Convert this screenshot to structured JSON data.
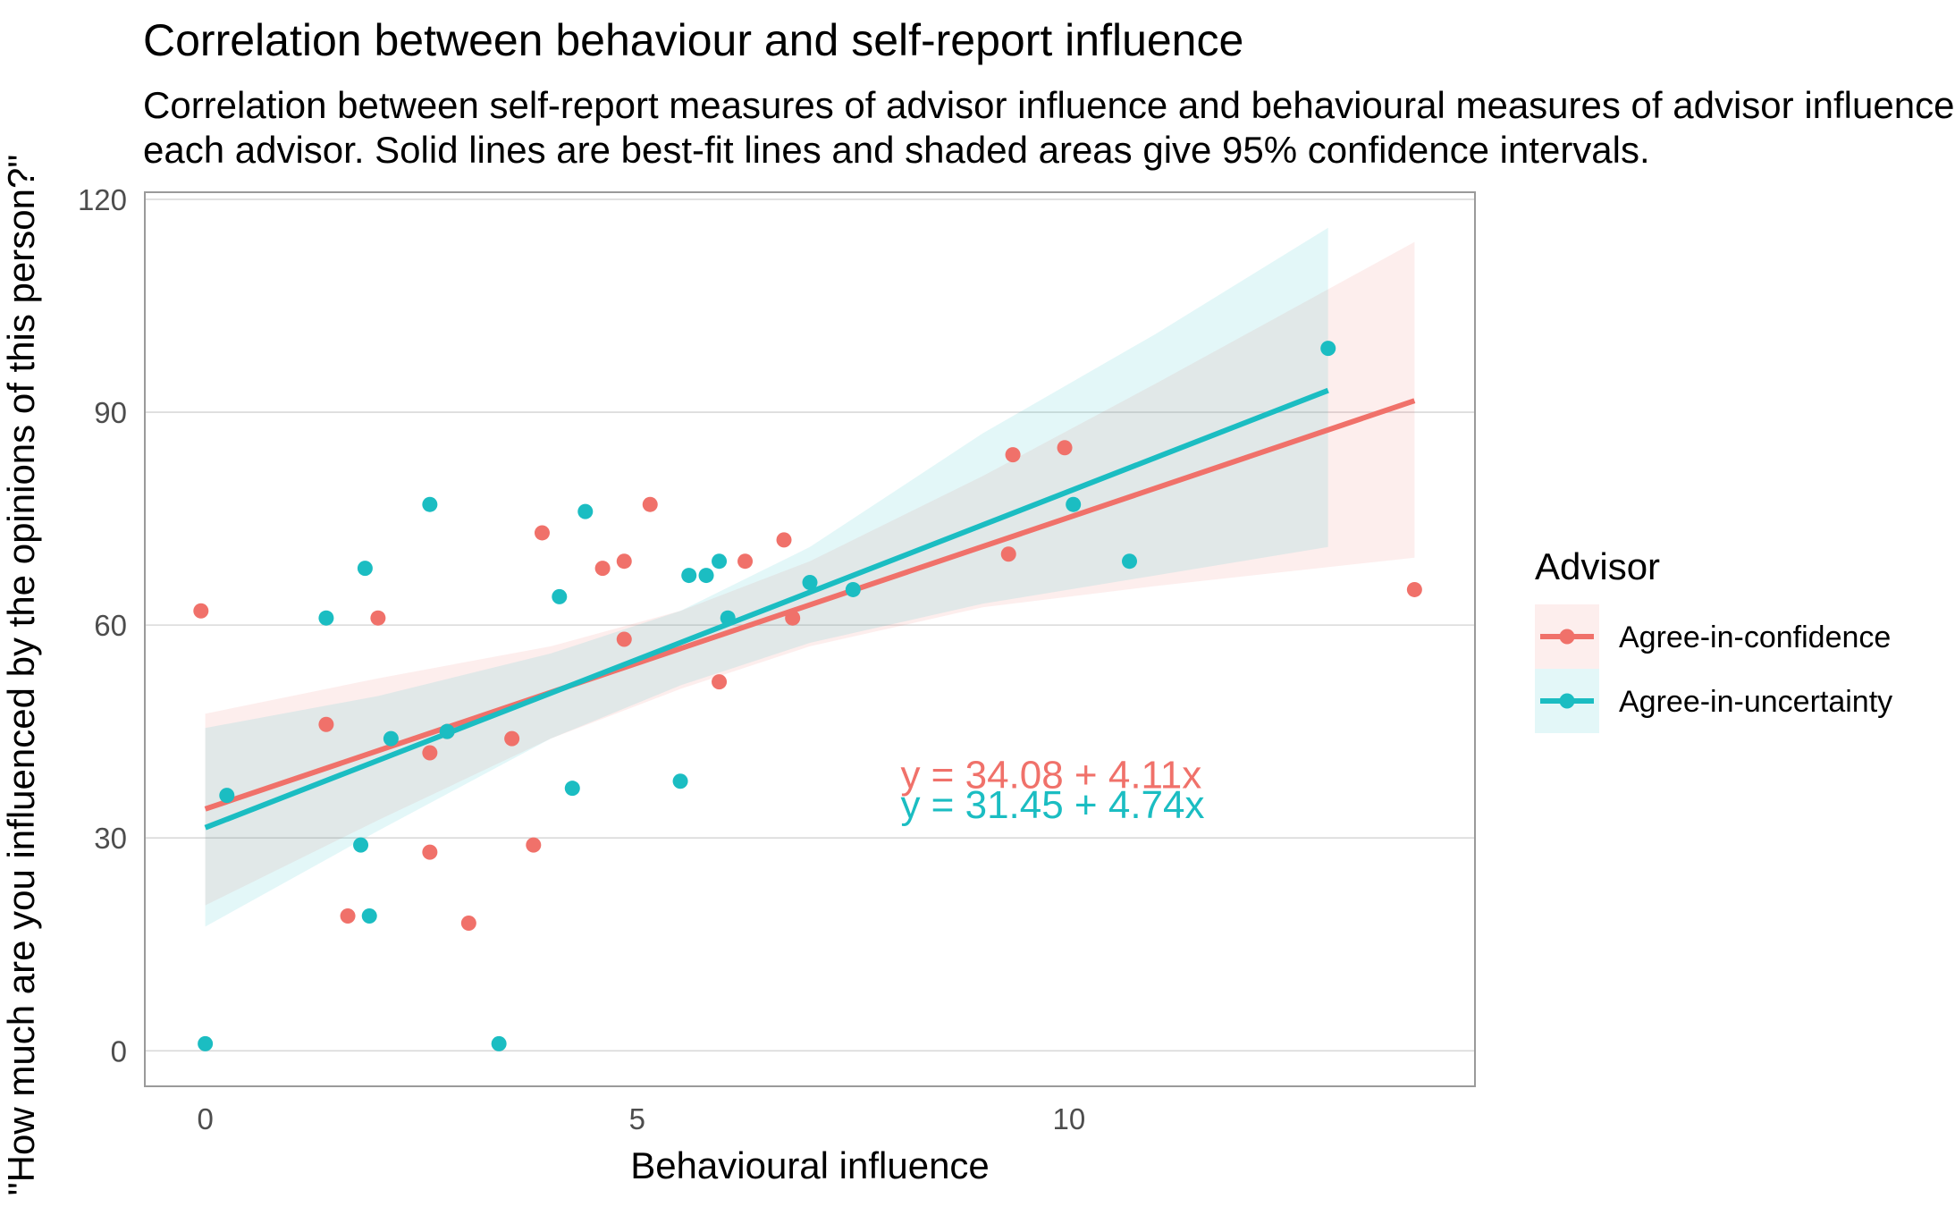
{
  "colors": {
    "agree_in_confidence": "#F0716A",
    "agree_in_uncertainty": "#1BBDC2",
    "grid": "#D9D9D9",
    "panel_border": "#9A9A9A"
  },
  "chart_data": {
    "type": "scatter",
    "title": "Correlation between behaviour and self-report influence",
    "subtitle_lines": [
      "Correlation between self-report measures of advisor influence and behavioural measures of advisor influence for",
      "each advisor.  Solid lines are best-fit lines and shaded areas give 95% confidence intervals."
    ],
    "xlabel": "Behavioural influence",
    "ylabel": "\"How much are you influenced by the opinions of this person?\"",
    "xlim": [
      -0.7,
      14.7
    ],
    "ylim": [
      -5,
      121
    ],
    "x_ticks": [
      0,
      5,
      10
    ],
    "y_ticks": [
      0,
      30,
      60,
      90,
      120
    ],
    "grid": true,
    "legend": {
      "title": "Advisor",
      "position": "right",
      "entries": [
        "Agree-in-confidence",
        "Agree-in-uncertainty"
      ]
    },
    "series": [
      {
        "name": "Agree-in-confidence",
        "color": "#F0716A",
        "points": [
          {
            "x": -0.05,
            "y": 62
          },
          {
            "x": 1.4,
            "y": 46
          },
          {
            "x": 1.65,
            "y": 19
          },
          {
            "x": 2.0,
            "y": 61
          },
          {
            "x": 2.6,
            "y": 42
          },
          {
            "x": 2.6,
            "y": 28
          },
          {
            "x": 2.8,
            "y": 45
          },
          {
            "x": 3.05,
            "y": 18
          },
          {
            "x": 3.55,
            "y": 44
          },
          {
            "x": 3.8,
            "y": 29
          },
          {
            "x": 3.9,
            "y": 73
          },
          {
            "x": 4.6,
            "y": 68
          },
          {
            "x": 4.85,
            "y": 69
          },
          {
            "x": 4.85,
            "y": 58
          },
          {
            "x": 5.15,
            "y": 77
          },
          {
            "x": 5.95,
            "y": 52
          },
          {
            "x": 6.25,
            "y": 69
          },
          {
            "x": 6.7,
            "y": 72
          },
          {
            "x": 6.8,
            "y": 61
          },
          {
            "x": 9.3,
            "y": 70
          },
          {
            "x": 9.35,
            "y": 84
          },
          {
            "x": 9.95,
            "y": 85
          },
          {
            "x": 14.0,
            "y": 65
          }
        ],
        "fit": {
          "intercept": 34.08,
          "slope": 4.11,
          "x_range": [
            0.0,
            14.0
          ]
        },
        "ci": [
          {
            "x": 0.0,
            "lo": 20.5,
            "hi": 47.5
          },
          {
            "x": 2.0,
            "lo": 32.5,
            "hi": 52.5
          },
          {
            "x": 4.0,
            "lo": 44.0,
            "hi": 57.0
          },
          {
            "x": 5.5,
            "lo": 51.0,
            "hi": 62.0
          },
          {
            "x": 7.0,
            "lo": 57.0,
            "hi": 69.0
          },
          {
            "x": 9.0,
            "lo": 62.5,
            "hi": 81.0
          },
          {
            "x": 11.0,
            "lo": 65.5,
            "hi": 94.0
          },
          {
            "x": 14.0,
            "lo": 69.5,
            "hi": 114.0
          }
        ],
        "equation": "y = 34.08 + 4.11x"
      },
      {
        "name": "Agree-in-uncertainty",
        "color": "#1BBDC2",
        "points": [
          {
            "x": 0.0,
            "y": 1
          },
          {
            "x": 0.25,
            "y": 36
          },
          {
            "x": 1.4,
            "y": 61
          },
          {
            "x": 1.8,
            "y": 29
          },
          {
            "x": 1.85,
            "y": 68
          },
          {
            "x": 1.9,
            "y": 19
          },
          {
            "x": 2.15,
            "y": 44
          },
          {
            "x": 2.6,
            "y": 77
          },
          {
            "x": 2.8,
            "y": 45
          },
          {
            "x": 3.4,
            "y": 1
          },
          {
            "x": 4.1,
            "y": 64
          },
          {
            "x": 4.25,
            "y": 37
          },
          {
            "x": 4.4,
            "y": 76
          },
          {
            "x": 5.5,
            "y": 38
          },
          {
            "x": 5.6,
            "y": 67
          },
          {
            "x": 5.8,
            "y": 67
          },
          {
            "x": 5.95,
            "y": 69
          },
          {
            "x": 6.05,
            "y": 61
          },
          {
            "x": 7.0,
            "y": 66
          },
          {
            "x": 7.5,
            "y": 65
          },
          {
            "x": 10.05,
            "y": 77
          },
          {
            "x": 10.7,
            "y": 69
          },
          {
            "x": 13.0,
            "y": 99
          }
        ],
        "fit": {
          "intercept": 31.45,
          "slope": 4.74,
          "x_range": [
            0.0,
            13.0
          ]
        },
        "ci": [
          {
            "x": 0.0,
            "lo": 17.5,
            "hi": 45.5
          },
          {
            "x": 2.0,
            "lo": 31.0,
            "hi": 50.0
          },
          {
            "x": 4.0,
            "lo": 44.0,
            "hi": 56.0
          },
          {
            "x": 5.5,
            "lo": 51.5,
            "hi": 62.0
          },
          {
            "x": 7.0,
            "lo": 57.5,
            "hi": 71.0
          },
          {
            "x": 9.0,
            "lo": 63.0,
            "hi": 87.0
          },
          {
            "x": 11.0,
            "lo": 67.0,
            "hi": 101.0
          },
          {
            "x": 13.0,
            "lo": 71.0,
            "hi": 116.0
          }
        ],
        "equation": "y = 31.45 + 4.74x"
      }
    ]
  }
}
